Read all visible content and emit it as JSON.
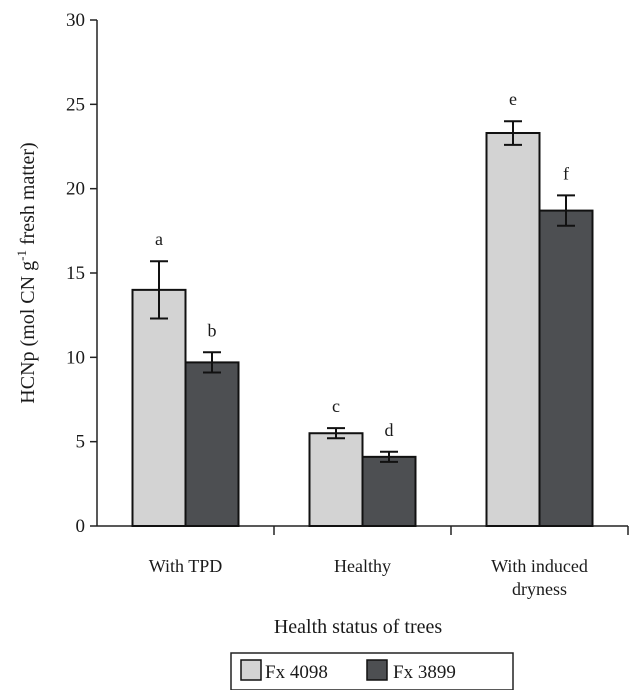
{
  "chart_data": {
    "type": "bar",
    "categories": [
      [
        "With TPD"
      ],
      [
        "Healthy"
      ],
      [
        "With induced",
        "dryness"
      ]
    ],
    "series": [
      {
        "name": "Fx 4098",
        "color": "#d3d3d3",
        "values": [
          14.0,
          5.5,
          23.3
        ],
        "errors": [
          1.7,
          0.3,
          0.7
        ]
      },
      {
        "name": "Fx 3899",
        "color": "#4d4f52",
        "values": [
          9.7,
          4.1,
          18.7
        ],
        "errors": [
          0.6,
          0.3,
          0.9
        ]
      }
    ],
    "significance_labels": [
      [
        "a",
        "c",
        "e"
      ],
      [
        "b",
        "d",
        "f"
      ]
    ],
    "xlabel": "Health status of trees",
    "ylabel": {
      "pre": "HCNp (mol CN g",
      "sup": "-1",
      "post": " fresh matter)"
    },
    "ylim": [
      0,
      30
    ],
    "yticks": [
      0,
      5,
      10,
      15,
      20,
      25,
      30
    ],
    "grid": false,
    "legend_position": "bottom-center"
  }
}
